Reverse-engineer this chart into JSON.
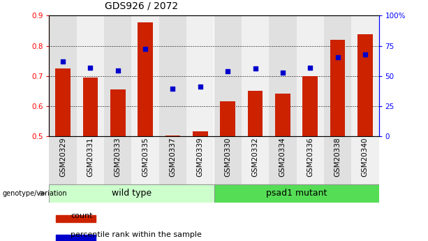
{
  "title": "GDS926 / 2072",
  "categories": [
    "GSM20329",
    "GSM20331",
    "GSM20333",
    "GSM20335",
    "GSM20337",
    "GSM20339",
    "GSM20330",
    "GSM20332",
    "GSM20334",
    "GSM20336",
    "GSM20338",
    "GSM20340"
  ],
  "bar_values": [
    0.725,
    0.695,
    0.655,
    0.878,
    0.503,
    0.515,
    0.615,
    0.65,
    0.642,
    0.7,
    0.82,
    0.838
  ],
  "dot_values": [
    0.748,
    0.728,
    0.718,
    0.79,
    0.658,
    0.665,
    0.716,
    0.724,
    0.71,
    0.728,
    0.762,
    0.772
  ],
  "bar_bottom": 0.5,
  "ylim_left": [
    0.5,
    0.9
  ],
  "ylim_right": [
    0,
    100
  ],
  "yticks_left": [
    0.5,
    0.6,
    0.7,
    0.8,
    0.9
  ],
  "yticks_right": [
    0,
    25,
    50,
    75,
    100
  ],
  "ytick_labels_right": [
    "0",
    "25",
    "50",
    "75",
    "100%"
  ],
  "bar_color": "#cc2200",
  "dot_color": "#0000cc",
  "group1_label": "wild type",
  "group2_label": "psad1 mutant",
  "group1_color": "#ccffcc",
  "group2_color": "#55dd55",
  "group1_count": 6,
  "group2_count": 6,
  "legend_count_label": "count",
  "legend_pct_label": "percentile rank within the sample",
  "genotype_label": "genotype/variation",
  "col_bg_even": "#e0e0e0",
  "col_bg_odd": "#f0f0f0",
  "title_fontsize": 10,
  "tick_fontsize": 7.5,
  "group_label_fontsize": 9
}
